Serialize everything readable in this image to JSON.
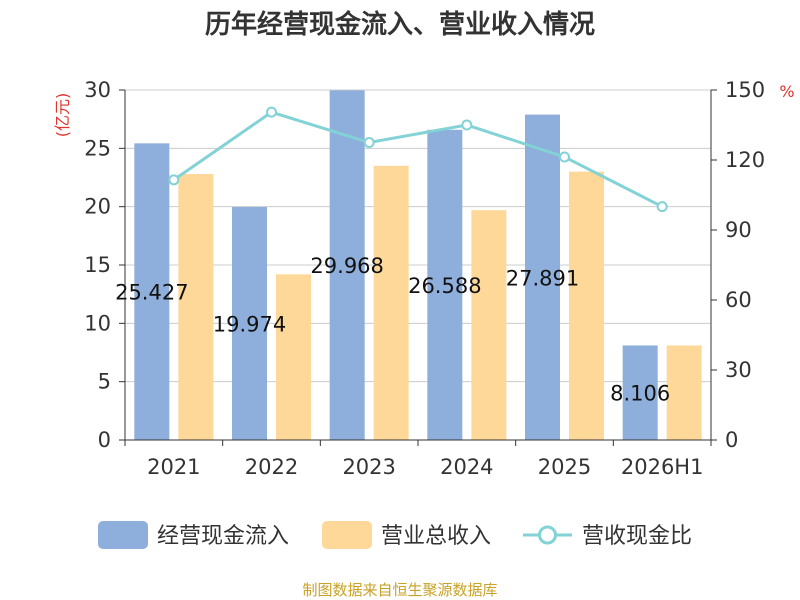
{
  "chart_data": {
    "type": "bar",
    "title": "历年经营现金流入、营业收入情况",
    "categories": [
      "2021",
      "2022",
      "2023",
      "2024",
      "2025",
      "2026H1"
    ],
    "series": [
      {
        "name": "经营现金流入",
        "kind": "bar",
        "axis": "left",
        "color": "#8eaedb",
        "values": [
          25.427,
          19.974,
          29.968,
          26.588,
          27.891,
          8.106
        ],
        "labels": [
          "25.427",
          "19.974",
          "29.968",
          "26.588",
          "27.891",
          "8.106"
        ]
      },
      {
        "name": "营业总收入",
        "kind": "bar",
        "axis": "left",
        "color": "#fed899",
        "values": [
          22.8,
          14.2,
          23.5,
          19.7,
          23.0,
          8.1
        ]
      },
      {
        "name": "营收现金比",
        "kind": "line",
        "axis": "right",
        "color": "#82d2d6",
        "values": [
          111.5,
          140.5,
          127.5,
          135.0,
          121.3,
          100.0
        ]
      }
    ],
    "y_left": {
      "unit": "(亿元)",
      "min": 0,
      "max": 30,
      "ticks": [
        0,
        5,
        10,
        15,
        20,
        25,
        30
      ]
    },
    "y_right": {
      "unit": "%",
      "min": 0,
      "max": 150,
      "ticks": [
        0,
        30,
        60,
        90,
        120,
        150
      ]
    },
    "grid": true,
    "legend_position": "bottom"
  },
  "source": "制图数据来自恒生聚源数据库"
}
